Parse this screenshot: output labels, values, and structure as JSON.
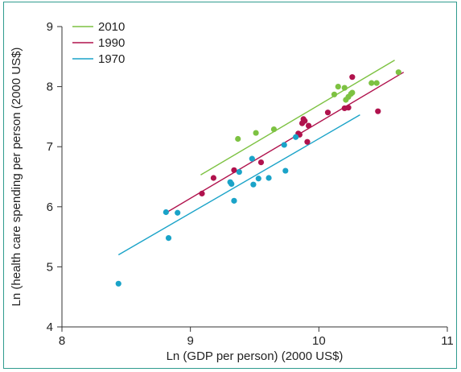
{
  "chart_data": {
    "type": "scatter",
    "title": "",
    "xlabel": "Ln (GDP per person) (2000 US$)",
    "ylabel": "Ln (health care spending per person (2000 US$)",
    "xlim": [
      8,
      11
    ],
    "ylim": [
      4,
      9
    ],
    "x_ticks": [
      "8",
      "9",
      "10",
      "11"
    ],
    "y_ticks": [
      "4",
      "5",
      "6",
      "7",
      "8",
      "9"
    ],
    "grid": false,
    "legend_position": "top-left",
    "series": [
      {
        "name": "2010",
        "color": "#7dc242",
        "points": [
          [
            9.37,
            7.13
          ],
          [
            9.51,
            7.23
          ],
          [
            9.65,
            7.29
          ],
          [
            10.12,
            7.87
          ],
          [
            10.15,
            8.0
          ],
          [
            10.2,
            7.98
          ],
          [
            10.21,
            7.78
          ],
          [
            10.23,
            7.83
          ],
          [
            10.25,
            7.88
          ],
          [
            10.26,
            7.9
          ],
          [
            10.41,
            8.06
          ],
          [
            10.45,
            8.06
          ],
          [
            10.62,
            8.24
          ]
        ],
        "trend": [
          [
            9.08,
            6.53
          ],
          [
            10.59,
            8.44
          ]
        ]
      },
      {
        "name": "1990",
        "color": "#b0124d",
        "points": [
          [
            9.09,
            6.22
          ],
          [
            9.18,
            6.48
          ],
          [
            9.34,
            6.61
          ],
          [
            9.55,
            6.74
          ],
          [
            9.84,
            7.22
          ],
          [
            9.85,
            7.2
          ],
          [
            9.87,
            7.39
          ],
          [
            9.88,
            7.46
          ],
          [
            9.89,
            7.43
          ],
          [
            9.92,
            7.35
          ],
          [
            9.91,
            7.08
          ],
          [
            10.07,
            7.57
          ],
          [
            10.2,
            7.64
          ],
          [
            10.23,
            7.65
          ],
          [
            10.26,
            8.16
          ],
          [
            10.46,
            7.59
          ]
        ],
        "trend": [
          [
            8.81,
            5.9
          ],
          [
            10.66,
            8.24
          ]
        ]
      },
      {
        "name": "1970",
        "color": "#1aa3c8",
        "points": [
          [
            8.44,
            4.72
          ],
          [
            8.81,
            5.91
          ],
          [
            8.83,
            5.48
          ],
          [
            8.9,
            5.9
          ],
          [
            9.31,
            6.41
          ],
          [
            9.32,
            6.38
          ],
          [
            9.34,
            6.1
          ],
          [
            9.38,
            6.58
          ],
          [
            9.48,
            6.8
          ],
          [
            9.49,
            6.37
          ],
          [
            9.53,
            6.47
          ],
          [
            9.61,
            6.48
          ],
          [
            9.73,
            7.03
          ],
          [
            9.74,
            6.6
          ],
          [
            9.82,
            7.16
          ]
        ],
        "trend": [
          [
            8.44,
            5.2
          ],
          [
            10.32,
            7.53
          ]
        ]
      }
    ]
  }
}
